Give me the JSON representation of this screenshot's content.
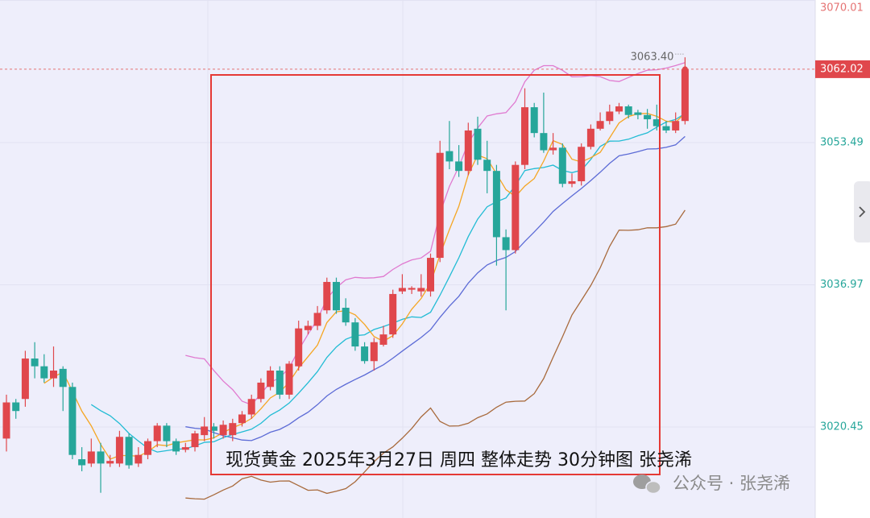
{
  "chart_data": {
    "type": "candlestick",
    "title": "现货黄金  2025年3月27日 周四  整体走势 30分钟图 张尧浠",
    "watermark": "公众号 · 张尧浠",
    "up_color": "#e0474c",
    "down_color": "#26a69a",
    "ylim": [
      3009.87,
      3070.06
    ],
    "yticks": [
      3070.01,
      3053.49,
      3036.97,
      3020.45
    ],
    "grid": true,
    "high_label": {
      "value": 3063.4,
      "label": "3063.40"
    },
    "ohlc": [
      [
        3019.1,
        3024.2,
        3017.6,
        3023.3
      ],
      [
        3023.3,
        3023.7,
        3021.4,
        3022.3
      ],
      [
        3023.7,
        3029.3,
        3022.8,
        3028.4
      ],
      [
        3028.4,
        3030.3,
        3026.1,
        3027.5
      ],
      [
        3027.5,
        3028.9,
        3025.6,
        3026.1
      ],
      [
        3026.1,
        3029.8,
        3025.1,
        3027.0
      ],
      [
        3027.2,
        3027.5,
        3022.3,
        3025.1
      ],
      [
        3025.1,
        3025.6,
        3016.7,
        3017.2
      ],
      [
        3016.7,
        3018.1,
        3015.3,
        3016.0
      ],
      [
        3016.2,
        3019.1,
        3015.8,
        3017.6
      ],
      [
        3017.6,
        3018.6,
        3012.8,
        3016.2
      ],
      [
        3016.2,
        3017.2,
        3015.8,
        3016.5
      ],
      [
        3016.2,
        3020.0,
        3015.8,
        3019.3
      ],
      [
        3019.3,
        3019.7,
        3015.6,
        3016.0
      ],
      [
        3016.2,
        3018.1,
        3015.8,
        3017.2
      ],
      [
        3017.2,
        3019.1,
        3016.7,
        3018.8
      ],
      [
        3018.8,
        3020.9,
        3018.1,
        3020.6
      ],
      [
        3020.6,
        3020.9,
        3018.1,
        3018.8
      ],
      [
        3018.8,
        3019.1,
        3017.2,
        3017.6
      ],
      [
        3017.8,
        3018.6,
        3017.5,
        3018.1
      ],
      [
        3018.1,
        3020.0,
        3017.6,
        3019.7
      ],
      [
        3019.5,
        3021.6,
        3018.8,
        3020.5
      ],
      [
        3020.5,
        3020.9,
        3019.1,
        3020.0
      ],
      [
        3019.5,
        3021.2,
        3019.1,
        3020.7
      ],
      [
        3019.5,
        3021.4,
        3018.8,
        3020.9
      ],
      [
        3020.9,
        3022.3,
        3020.5,
        3021.9
      ],
      [
        3021.9,
        3024.2,
        3021.4,
        3023.7
      ],
      [
        3023.7,
        3026.1,
        3023.3,
        3025.6
      ],
      [
        3025.1,
        3027.5,
        3024.7,
        3027.0
      ],
      [
        3027.0,
        3027.5,
        3023.7,
        3024.2
      ],
      [
        3024.2,
        3028.1,
        3023.7,
        3027.8
      ],
      [
        3027.5,
        3032.8,
        3027.0,
        3031.9
      ],
      [
        3031.7,
        3032.8,
        3031.2,
        3032.2
      ],
      [
        3032.2,
        3034.5,
        3031.7,
        3033.7
      ],
      [
        3034.0,
        3037.8,
        3033.6,
        3037.3
      ],
      [
        3037.3,
        3037.8,
        3033.6,
        3034.0
      ],
      [
        3034.3,
        3035.4,
        3032.2,
        3032.6
      ],
      [
        3032.6,
        3033.1,
        3029.3,
        3029.8
      ],
      [
        3029.8,
        3030.3,
        3027.8,
        3028.1
      ],
      [
        3028.1,
        3030.8,
        3027.0,
        3030.3
      ],
      [
        3030.0,
        3032.2,
        3029.8,
        3031.2
      ],
      [
        3031.2,
        3036.4,
        3030.8,
        3035.9
      ],
      [
        3036.2,
        3038.2,
        3035.9,
        3036.6
      ],
      [
        3036.4,
        3036.8,
        3035.9,
        3036.6
      ],
      [
        3036.2,
        3038.2,
        3035.6,
        3036.6
      ],
      [
        3036.2,
        3040.6,
        3035.6,
        3040.1
      ],
      [
        3040.1,
        3053.7,
        3039.6,
        3052.3
      ],
      [
        3052.5,
        3056.0,
        3050.4,
        3051.3
      ],
      [
        3051.3,
        3053.2,
        3049.5,
        3050.2
      ],
      [
        3050.2,
        3055.8,
        3049.7,
        3054.9
      ],
      [
        3055.1,
        3056.5,
        3050.9,
        3051.5
      ],
      [
        3051.5,
        3053.7,
        3047.6,
        3050.2
      ],
      [
        3050.2,
        3050.9,
        3039.2,
        3042.5
      ],
      [
        3042.5,
        3043.4,
        3034.0,
        3041.0
      ],
      [
        3041.0,
        3051.3,
        3040.6,
        3050.9
      ],
      [
        3050.9,
        3059.8,
        3050.4,
        3057.6
      ],
      [
        3057.6,
        3058.1,
        3054.1,
        3054.6
      ],
      [
        3054.6,
        3059.3,
        3052.3,
        3052.6
      ],
      [
        3052.6,
        3054.6,
        3052.1,
        3052.9
      ],
      [
        3052.9,
        3053.4,
        3048.3,
        3048.7
      ],
      [
        3048.7,
        3049.9,
        3048.3,
        3049.0
      ],
      [
        3049.0,
        3053.4,
        3048.5,
        3053.0
      ],
      [
        3053.0,
        3055.6,
        3052.7,
        3055.1
      ],
      [
        3055.1,
        3057.0,
        3054.9,
        3056.0
      ],
      [
        3056.0,
        3057.9,
        3055.6,
        3057.1
      ],
      [
        3057.1,
        3058.1,
        3056.8,
        3057.7
      ],
      [
        3057.7,
        3057.9,
        3056.3,
        3056.7
      ],
      [
        3057.0,
        3057.3,
        3056.2,
        3056.7
      ],
      [
        3056.7,
        3057.4,
        3055.1,
        3056.2
      ],
      [
        3056.2,
        3057.9,
        3054.9,
        3055.4
      ],
      [
        3055.4,
        3056.0,
        3054.6,
        3054.9
      ],
      [
        3054.9,
        3057.0,
        3054.6,
        3056.0
      ],
      [
        3056.0,
        3063.4,
        3055.6,
        3062.02
      ]
    ]
  }
}
